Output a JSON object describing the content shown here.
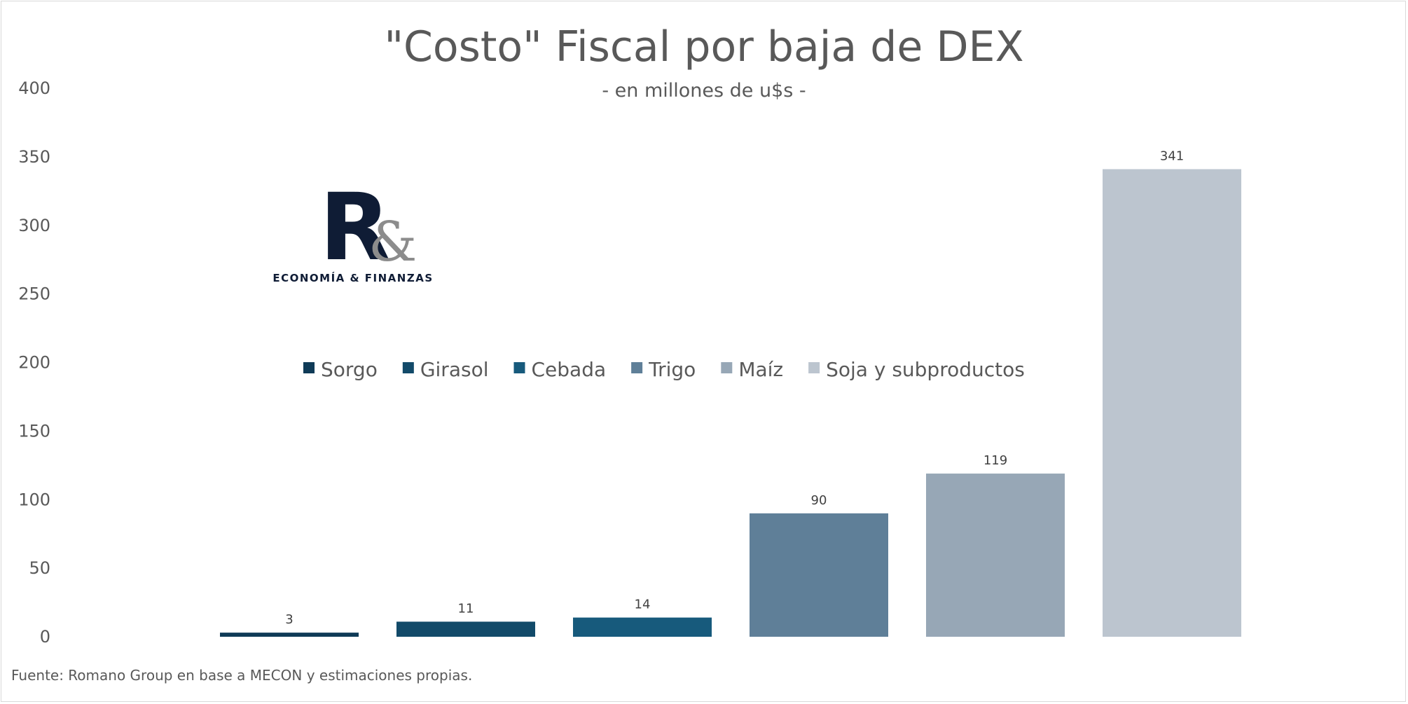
{
  "chart_data": {
    "type": "bar",
    "title": "\"Costo\" Fiscal por baja de DEX",
    "subtitle": "- en millones de u$s -",
    "categories": [
      "Sorgo",
      "Girasol",
      "Cebada",
      "Trigo",
      "Maíz",
      "Soja y subproductos"
    ],
    "values": [
      3,
      11,
      14,
      90,
      119,
      341
    ],
    "data_labels": [
      "3",
      "11",
      "14",
      "90",
      "119",
      "341"
    ],
    "colors": [
      "#0f3b57",
      "#124a69",
      "#175a7c",
      "#5f7f98",
      "#97a7b6",
      "#bcc5cf"
    ],
    "ylim": [
      0,
      400
    ],
    "yticks": [
      0,
      50,
      100,
      150,
      200,
      250,
      300,
      350,
      400
    ],
    "ytick_labels": [
      "0",
      "50",
      "100",
      "150",
      "200",
      "250",
      "300",
      "350",
      "400"
    ],
    "xlabel": "",
    "ylabel": "",
    "grid": false,
    "legend": {
      "placement": "center",
      "entries": [
        "Sorgo",
        "Girasol",
        "Cebada",
        "Trigo",
        "Maíz",
        "Soja y subproductos"
      ]
    },
    "source": "Fuente: Romano Group en base a MECON y estimaciones propias."
  },
  "logo": {
    "letter": "R",
    "ampersand": "&",
    "wordmark": "ECONOMÍA & FINANZAS"
  }
}
